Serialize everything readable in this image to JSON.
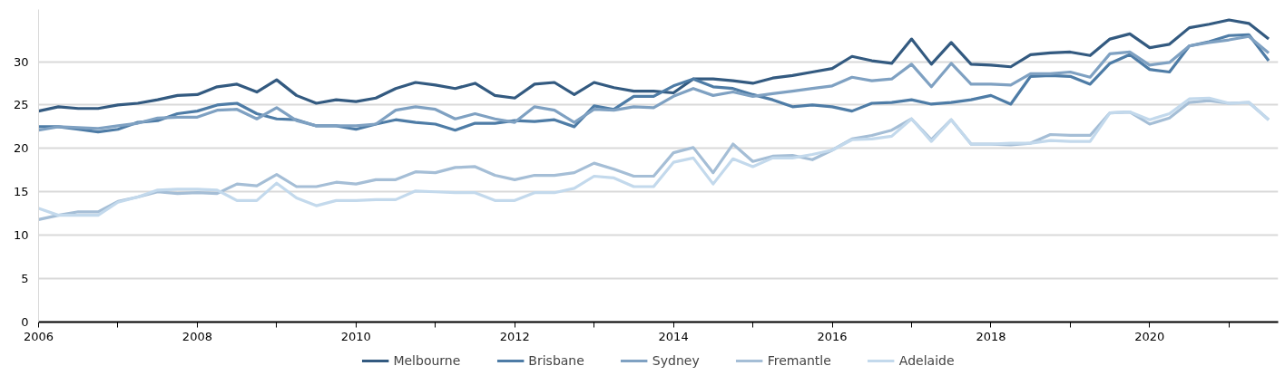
{
  "chart_data": {
    "type": "line",
    "x": [
      2006,
      2006.25,
      2006.5,
      2006.75,
      2007,
      2007.25,
      2007.5,
      2007.75,
      2008,
      2008.25,
      2008.5,
      2008.75,
      2009,
      2009.25,
      2009.5,
      2009.75,
      2010,
      2010.25,
      2010.5,
      2010.75,
      2011,
      2011.25,
      2011.5,
      2011.75,
      2012,
      2012.25,
      2012.5,
      2012.75,
      2013,
      2013.25,
      2013.5,
      2013.75,
      2014,
      2014.25,
      2014.5,
      2014.75,
      2015,
      2015.25,
      2015.5,
      2015.75,
      2016,
      2016.25,
      2016.5,
      2016.75,
      2017,
      2017.25,
      2017.5,
      2017.75,
      2018,
      2018.25,
      2018.5,
      2018.75,
      2019,
      2019.25,
      2019.5,
      2019.75,
      2020,
      2020.25,
      2020.5,
      2020.75,
      2021,
      2021.25,
      2021.5
    ],
    "series": [
      {
        "name": "Melbourne",
        "color": "#335a80",
        "values": [
          24.3,
          24.8,
          24.6,
          24.6,
          25.0,
          25.2,
          25.6,
          26.1,
          26.2,
          27.1,
          27.4,
          26.5,
          27.9,
          26.1,
          25.2,
          25.6,
          25.4,
          25.8,
          26.9,
          27.6,
          27.3,
          26.9,
          27.5,
          26.1,
          25.8,
          27.4,
          27.6,
          26.2,
          27.6,
          27.0,
          26.6,
          26.6,
          26.4,
          28.0,
          28.0,
          27.8,
          27.5,
          28.1,
          28.4,
          28.8,
          29.2,
          30.6,
          30.1,
          29.8,
          32.6,
          29.7,
          32.2,
          29.7,
          29.6,
          29.4,
          30.8,
          31.0,
          31.1,
          30.7,
          32.6,
          33.2,
          31.6,
          32.0,
          33.9,
          34.3,
          34.8,
          34.4,
          32.6
        ]
      },
      {
        "name": "Brisbane",
        "color": "#4e7ca6",
        "values": [
          22.5,
          22.5,
          22.2,
          21.9,
          22.2,
          23.0,
          23.2,
          24.0,
          24.3,
          25.0,
          25.2,
          24.0,
          23.4,
          23.3,
          22.6,
          22.6,
          22.2,
          22.8,
          23.3,
          23.0,
          22.8,
          22.1,
          22.9,
          22.9,
          23.2,
          23.1,
          23.3,
          22.5,
          24.9,
          24.5,
          26.0,
          26.0,
          27.2,
          28.0,
          27.1,
          26.9,
          26.2,
          25.6,
          24.8,
          25.0,
          24.8,
          24.3,
          25.2,
          25.3,
          25.6,
          25.1,
          25.3,
          25.6,
          26.1,
          25.1,
          28.3,
          28.4,
          28.3,
          27.4,
          29.8,
          30.8,
          29.1,
          28.8,
          31.8,
          32.3,
          33.0,
          33.1,
          30.1
        ]
      },
      {
        "name": "Sydney",
        "color": "#7fa1c2",
        "values": [
          22.1,
          22.5,
          22.4,
          22.3,
          22.6,
          22.9,
          23.5,
          23.6,
          23.6,
          24.4,
          24.5,
          23.4,
          24.7,
          23.2,
          22.6,
          22.6,
          22.6,
          22.8,
          24.4,
          24.8,
          24.5,
          23.4,
          24.0,
          23.4,
          23.0,
          24.8,
          24.4,
          23.0,
          24.5,
          24.4,
          24.8,
          24.7,
          26.0,
          26.9,
          26.1,
          26.5,
          26.0,
          26.3,
          26.6,
          26.9,
          27.2,
          28.2,
          27.8,
          28.0,
          29.7,
          27.1,
          29.8,
          27.4,
          27.4,
          27.3,
          28.6,
          28.6,
          28.8,
          28.2,
          30.9,
          31.1,
          29.6,
          29.9,
          31.8,
          32.2,
          32.5,
          32.9,
          31.0
        ]
      },
      {
        "name": "Fremantle",
        "color": "#a5bed6",
        "values": [
          11.8,
          12.3,
          12.7,
          12.7,
          13.9,
          14.4,
          15.0,
          14.8,
          14.9,
          14.8,
          15.9,
          15.7,
          17.0,
          15.6,
          15.6,
          16.1,
          15.9,
          16.4,
          16.4,
          17.3,
          17.2,
          17.8,
          17.9,
          16.9,
          16.4,
          16.9,
          16.9,
          17.2,
          18.3,
          17.6,
          16.8,
          16.8,
          19.5,
          20.1,
          17.2,
          20.5,
          18.5,
          19.1,
          19.2,
          18.7,
          19.8,
          21.1,
          21.5,
          22.1,
          23.4,
          21.0,
          23.3,
          20.5,
          20.5,
          20.4,
          20.6,
          21.6,
          21.5,
          21.5,
          24.1,
          24.2,
          22.8,
          23.5,
          25.3,
          25.5,
          25.2,
          25.3,
          23.3
        ]
      },
      {
        "name": "Adelaide",
        "color": "#c3d9ec",
        "values": [
          13.1,
          12.3,
          12.3,
          12.3,
          13.8,
          14.4,
          15.2,
          15.3,
          15.3,
          15.2,
          14.0,
          14.0,
          16.0,
          14.3,
          13.4,
          14.0,
          14.0,
          14.1,
          14.1,
          15.1,
          15.0,
          14.9,
          14.9,
          14.0,
          14.0,
          14.9,
          14.9,
          15.4,
          16.8,
          16.6,
          15.6,
          15.6,
          18.4,
          18.9,
          15.9,
          18.8,
          17.9,
          18.9,
          18.9,
          19.3,
          19.8,
          21.0,
          21.1,
          21.4,
          23.4,
          20.8,
          23.3,
          20.5,
          20.5,
          20.6,
          20.6,
          20.9,
          20.8,
          20.8,
          24.1,
          24.2,
          23.3,
          24.0,
          25.7,
          25.8,
          25.2,
          25.3,
          23.3
        ]
      }
    ],
    "xlim": [
      2006,
      2021.62
    ],
    "ylim": [
      0,
      36
    ],
    "xticks": [
      2006,
      {
        "value": 2007,
        "label": null
      },
      2008,
      {
        "value": 2009,
        "label": null
      },
      2010,
      {
        "value": 2011,
        "label": null
      },
      2012,
      {
        "value": 2013,
        "label": null
      },
      2014,
      {
        "value": 2015,
        "label": null
      },
      2016,
      {
        "value": 2017,
        "label": null
      },
      2018,
      {
        "value": 2019,
        "label": null
      },
      2020,
      {
        "value": 2021,
        "label": null
      }
    ],
    "yticks": [
      0,
      5,
      10,
      15,
      20,
      25,
      30
    ],
    "grid": "y",
    "legend": "bottom",
    "marker": "none",
    "line_style": "solid"
  }
}
